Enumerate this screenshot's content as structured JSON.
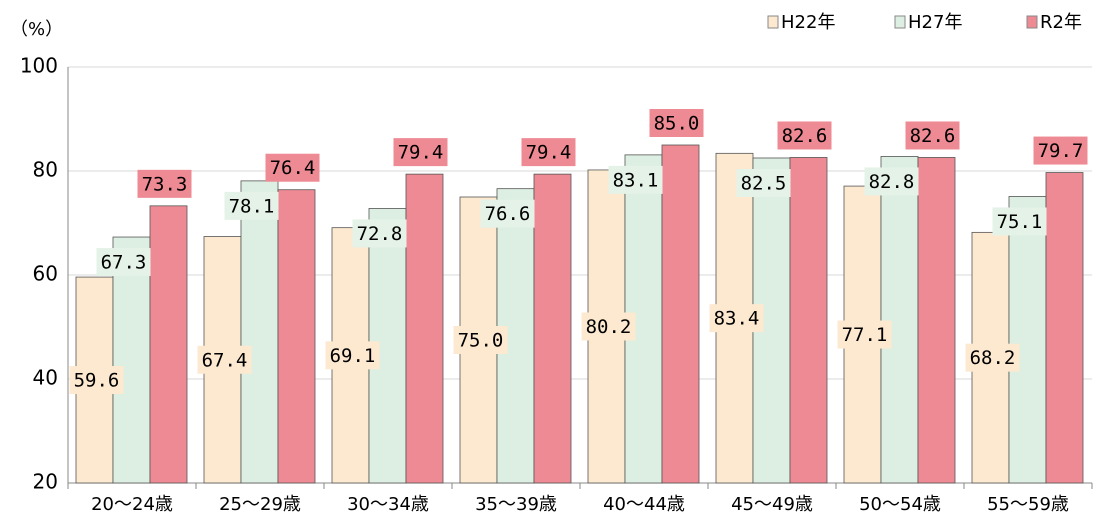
{
  "chart_data": {
    "type": "bar",
    "y_label": "（%）",
    "categories": [
      "20～24歳",
      "25～29歳",
      "30～34歳",
      "35～39歳",
      "40～44歳",
      "45～49歳",
      "50～54歳",
      "55～59歳"
    ],
    "series": [
      {
        "name": "H22年",
        "color": "#fde9d0",
        "label_color": "#fde9d0",
        "values": [
          59.6,
          67.4,
          69.1,
          75,
          80.2,
          83.4,
          77.1,
          68.2
        ],
        "value_labels": [
          "59.6",
          "67.4",
          "69.1",
          "75.0",
          "80.2",
          "83.4",
          "77.1",
          "68.2"
        ]
      },
      {
        "name": "H27年",
        "color": "#dcefe2",
        "label_color": "#e4f2e8",
        "values": [
          67.3,
          78.1,
          72.8,
          76.6,
          83.1,
          82.5,
          82.8,
          75.1
        ],
        "value_labels": [
          "67.3",
          "78.1",
          "72.8",
          "76.6",
          "83.1",
          "82.5",
          "82.8",
          "75.1"
        ]
      },
      {
        "name": "R2年",
        "color": "#ee8a93",
        "label_color": "#ee8a93",
        "values": [
          73.3,
          76.4,
          79.4,
          79.4,
          85,
          82.6,
          82.6,
          79.7
        ],
        "value_labels": [
          "73.3",
          "76.4",
          "79.4",
          "79.4",
          "85.0",
          "82.6",
          "82.6",
          "79.7"
        ]
      }
    ],
    "ylim": [
      20,
      100
    ],
    "yticks": [
      20,
      40,
      60,
      80,
      100
    ],
    "grid": true,
    "legend": "top-right"
  }
}
